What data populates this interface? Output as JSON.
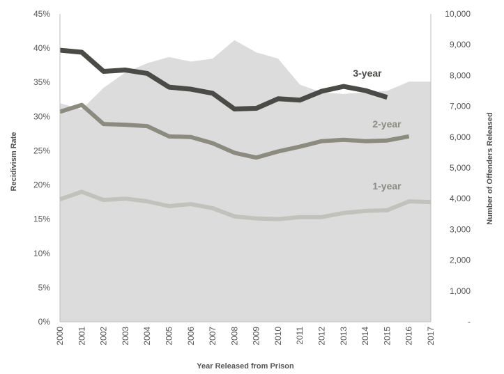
{
  "chart_data": {
    "type": "line",
    "title": "",
    "xlabel": "Year Released from Prison",
    "ylabel_left": "Recidivism Rate",
    "ylabel_right": "Number of Offenders Released",
    "categories": [
      "2000",
      "2001",
      "2002",
      "2003",
      "2004",
      "2005",
      "2006",
      "2007",
      "2008",
      "2009",
      "2010",
      "2011",
      "2012",
      "2013",
      "2014",
      "2015",
      "2016",
      "2017"
    ],
    "ylim_left": [
      0,
      45
    ],
    "ylim_right": [
      0,
      10000
    ],
    "left_ticks": [
      "0%",
      "5%",
      "10%",
      "15%",
      "20%",
      "25%",
      "30%",
      "35%",
      "40%",
      "45%"
    ],
    "right_ticks": [
      "-",
      "1,000",
      "2,000",
      "3,000",
      "4,000",
      "5,000",
      "6,000",
      "7,000",
      "8,000",
      "9,000",
      "10,000"
    ],
    "grid": false,
    "area_series": {
      "name": "Number of Offenders Released",
      "axis": "right",
      "color": "#dcdcdc",
      "values": [
        7100,
        6900,
        7600,
        8100,
        8400,
        8600,
        8450,
        8550,
        9150,
        8750,
        8550,
        7700,
        7450,
        7400,
        7450,
        7500,
        7800,
        7800
      ]
    },
    "series": [
      {
        "name": "3-year",
        "color": "#4a4a47",
        "values": [
          39.7,
          39.4,
          36.6,
          36.8,
          36.3,
          34.3,
          34.0,
          33.4,
          31.1,
          31.2,
          32.6,
          32.4,
          33.7,
          34.4,
          33.8,
          32.8,
          null,
          null
        ]
      },
      {
        "name": "2-year",
        "color": "#8b8b80",
        "values": [
          30.7,
          31.7,
          28.9,
          28.8,
          28.6,
          27.1,
          27.0,
          26.1,
          24.7,
          24.0,
          24.9,
          25.6,
          26.4,
          26.6,
          26.4,
          26.5,
          27.1,
          null
        ]
      },
      {
        "name": "1-year",
        "color": "#c2c2bd",
        "values": [
          17.9,
          19.0,
          17.8,
          18.0,
          17.6,
          16.9,
          17.2,
          16.6,
          15.4,
          15.1,
          15.0,
          15.3,
          15.3,
          15.9,
          16.2,
          16.3,
          17.6,
          17.5
        ]
      }
    ]
  }
}
